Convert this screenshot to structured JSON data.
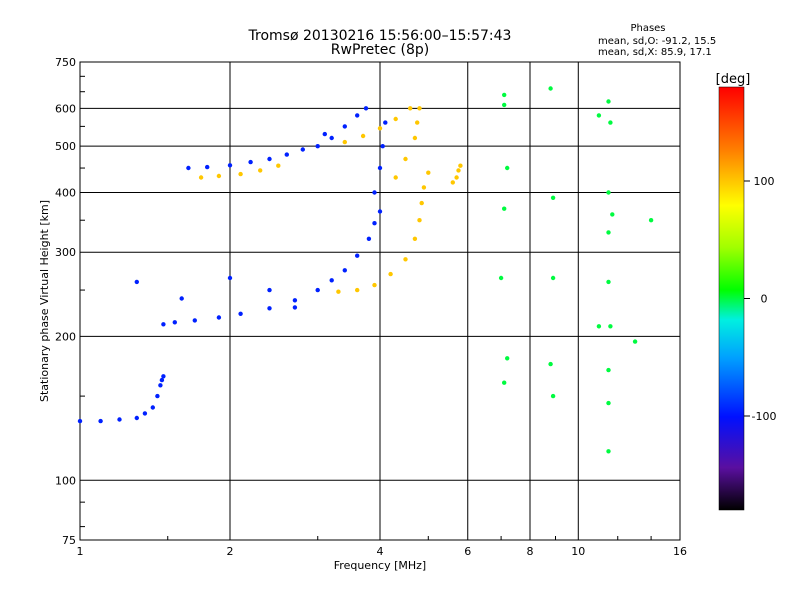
{
  "chart_data": {
    "type": "scatter",
    "title": "Tromsø 20130216 15:56:00–15:57:43",
    "subtitle": "RwPretec (8p)",
    "xlabel": "Frequency [MHz]",
    "ylabel": "Stationary phase Virtual Height [km]",
    "x_scale": "log",
    "y_scale": "log",
    "xlim": [
      1,
      16
    ],
    "ylim": [
      75,
      750
    ],
    "x_ticks": [
      1,
      2,
      4,
      6,
      8,
      10,
      16
    ],
    "x_tick_labels": [
      "1",
      "2",
      "4",
      "6",
      "8",
      "10",
      "16"
    ],
    "y_ticks": [
      75,
      100,
      200,
      300,
      400,
      500,
      600,
      750
    ],
    "y_tick_labels": [
      "75",
      "100",
      "200",
      "300",
      "400",
      "500",
      "600",
      "750"
    ],
    "grid": true,
    "legend": {
      "title": "Phases",
      "entries": [
        "mean, sd,O: -91.2, 15.5",
        "mean, sd,X: 85.9, 17.1"
      ],
      "placement": "top-right"
    },
    "colorbar": {
      "label": "[deg]",
      "range": [
        -180,
        180
      ],
      "ticks": [
        -100,
        0,
        100
      ],
      "tick_labels": [
        "-100",
        "0",
        "100"
      ],
      "placement": "right"
    },
    "series": [
      {
        "mode": "O",
        "color_value": -95,
        "traces": [
          {
            "x": [
              1.0,
              1.1,
              1.2,
              1.3,
              1.35,
              1.4,
              1.43,
              1.45,
              1.46,
              1.47
            ],
            "y": [
              133,
              133,
              134,
              135,
              138,
              142,
              150,
              158,
              162,
              165
            ]
          },
          {
            "x": [
              1.47,
              1.55,
              1.7,
              1.9,
              2.1,
              2.4,
              2.7,
              3.0,
              3.2,
              3.4,
              3.6,
              3.8,
              3.9,
              4.0
            ],
            "y": [
              212,
              214,
              216,
              219,
              223,
              229,
              238,
              250,
              262,
              275,
              295,
              320,
              345,
              365
            ]
          },
          {
            "x": [
              1.65,
              1.8,
              2.0,
              2.2,
              2.4,
              2.6,
              2.8
            ],
            "y": [
              450,
              452,
              456,
              463,
              470,
              480,
              492
            ]
          },
          {
            "x": [
              3.0,
              3.2,
              3.4,
              3.6,
              3.75
            ],
            "y": [
              500,
              520,
              550,
              580,
              600
            ]
          },
          {
            "x": [
              1.3,
              1.6,
              2.0,
              2.4,
              2.7,
              3.1,
              3.9,
              4.0,
              4.05,
              4.1
            ],
            "y": [
              260,
              240,
              265,
              250,
              230,
              530,
              400,
              450,
              500,
              560
            ]
          }
        ]
      },
      {
        "mode": "X",
        "color_value": 100,
        "traces": [
          {
            "x": [
              3.3,
              3.6,
              3.9,
              4.2,
              4.5,
              4.7,
              4.8,
              4.85,
              4.9,
              5.0
            ],
            "y": [
              248,
              250,
              256,
              270,
              290,
              320,
              350,
              380,
              410,
              440
            ]
          },
          {
            "x": [
              3.4,
              3.7,
              4.0,
              4.3,
              4.6
            ],
            "y": [
              510,
              525,
              545,
              570,
              600
            ]
          },
          {
            "x": [
              1.75,
              1.9,
              2.1,
              2.3,
              2.5
            ],
            "y": [
              430,
              433,
              437,
              445,
              455
            ]
          },
          {
            "x": [
              5.6,
              5.7,
              5.75,
              5.8
            ],
            "y": [
              420,
              430,
              445,
              455
            ]
          },
          {
            "x": [
              4.3,
              4.5,
              4.7,
              4.75,
              4.8
            ],
            "y": [
              430,
              470,
              520,
              560,
              600
            ]
          }
        ]
      },
      {
        "mode": "scatter",
        "color_value": 0,
        "traces": [
          {
            "x": [
              7.1,
              7.1,
              7.2,
              7.1,
              7.0,
              7.2,
              7.1,
              8.8,
              8.9,
              8.9,
              8.8,
              8.9,
              11.0,
              11.5,
              11.6,
              11.5,
              11.7,
              11.5,
              11.5,
              11.6,
              11.5,
              11.5,
              11.5,
              11.0,
              13.0,
              14.0
            ],
            "y": [
              640,
              610,
              450,
              370,
              265,
              180,
              160,
              660,
              390,
              265,
              175,
              150,
              580,
              620,
              560,
              400,
              360,
              330,
              260,
              210,
              170,
              145,
              115,
              210,
              195,
              350
            ]
          }
        ]
      }
    ]
  }
}
